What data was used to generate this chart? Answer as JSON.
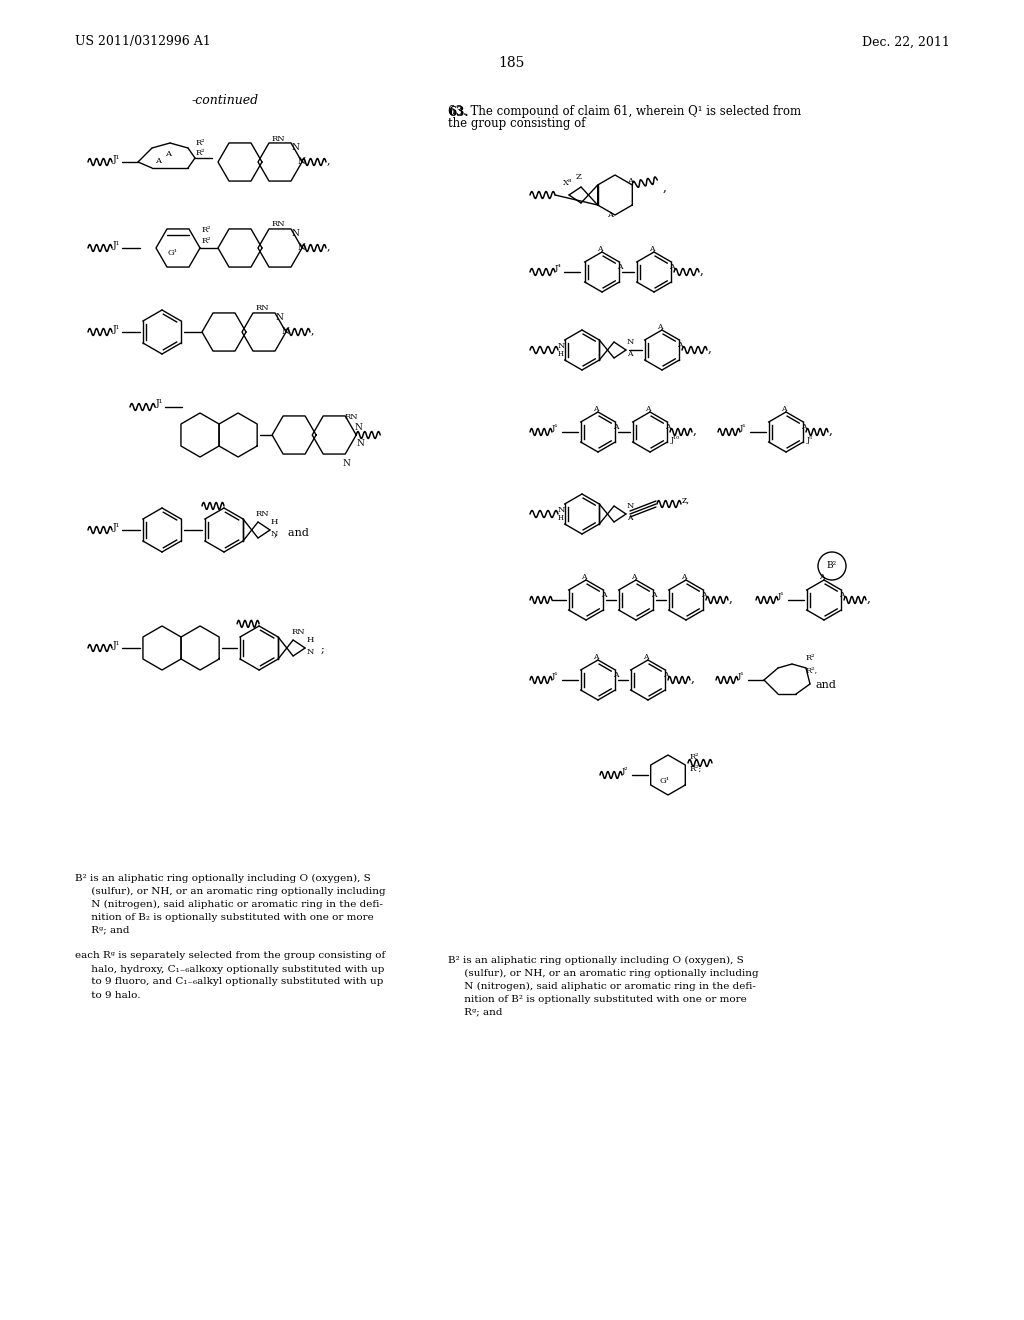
{
  "background_color": "#ffffff",
  "page_number": "185",
  "header_left": "US 2011/0312996 A1",
  "header_right": "Dec. 22, 2011",
  "left_label": "-continued",
  "claim_line1": "63. The compound of claim 61, wherein Q¹ is selected from",
  "claim_line2": "the group consisting of",
  "footer_left": [
    "B² is an aliphatic ring optionally including O (oxygen), S",
    "     (sulfur), or NH, or an aromatic ring optionally including",
    "     N (nitrogen), said aliphatic or aromatic ring in the defi-",
    "     nition of B₂ is optionally substituted with one or more",
    "     Rᵍ; and",
    "",
    "each Rᵍ is separately selected from the group consisting of",
    "     halo, hydroxy, C₁₋₆alkoxy optionally substituted with up",
    "     to 9 fluoro, and C₁₋₆alkyl optionally substituted with up",
    "     to 9 halo."
  ],
  "footer_right": [
    "B² is an aliphatic ring optionally including O (oxygen), S",
    "     (sulfur), or NH, or an aromatic ring optionally including",
    "     N (nitrogen), said aliphatic or aromatic ring in the defi-",
    "     nition of B² is optionally substituted with one or more",
    "     Rᵍ; and"
  ]
}
